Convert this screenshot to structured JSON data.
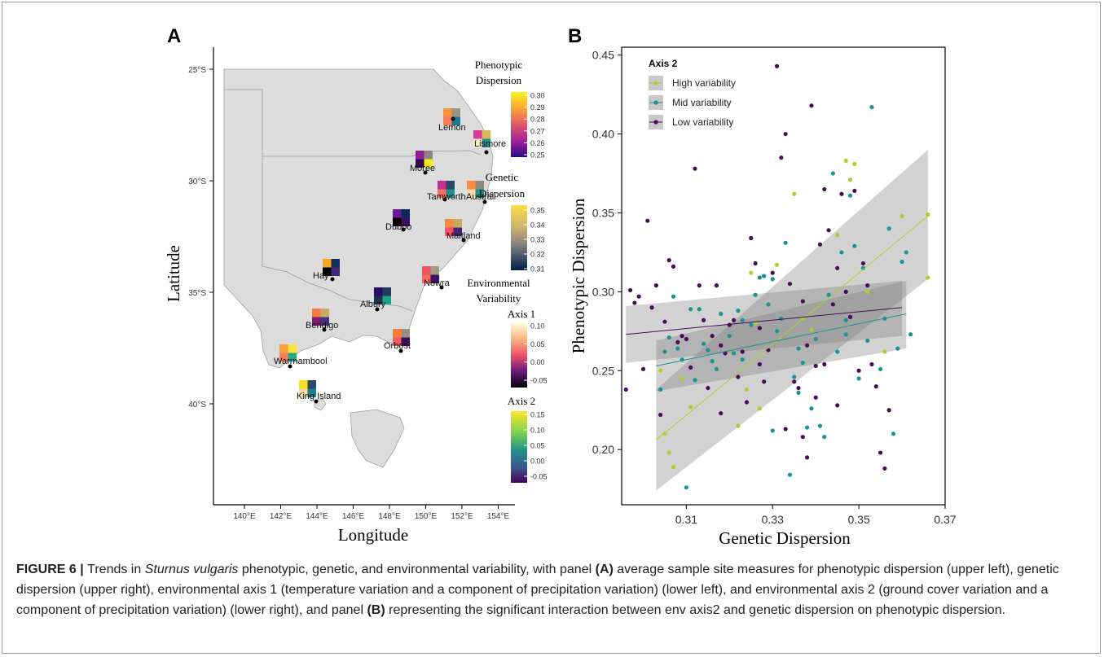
{
  "panel_a": {
    "label": "A",
    "xlabel": "Longitude",
    "ylabel": "Latitude",
    "x_ticks": [
      "140°E",
      "142°E",
      "144°E",
      "146°E",
      "148°E",
      "150°E",
      "152°E",
      "154°E"
    ],
    "y_ticks": [
      "25°S",
      "30°S",
      "35°S",
      "40°S"
    ],
    "legend": {
      "pheno_title_1": "Phenotypic",
      "pheno_title_2": "Dispersion",
      "pheno_ticks": [
        "0.30",
        "0.29",
        "0.28",
        "0.27",
        "0.26",
        "0.25"
      ],
      "gen_title_1": "Genetic",
      "gen_title_2": "Dispersion",
      "gen_ticks": [
        "0.35",
        "0.34",
        "0.33",
        "0.32",
        "0.31"
      ],
      "env_title_1": "Environmental",
      "env_title_2": "Variability",
      "axis1_title": "Axis 1",
      "axis1_ticks": [
        "0.10",
        "0.05",
        "0.00",
        "-0.05"
      ],
      "axis2_title": "Axis 2",
      "axis2_ticks": [
        "0.15",
        "0.10",
        "0.05",
        "0.00",
        "-0.05"
      ]
    },
    "sites": [
      {
        "name": "Lemon",
        "colors": [
          "#F7923B",
          "#9A9187",
          "#FA7B5E",
          "#1A7A8C"
        ]
      },
      {
        "name": "Lismore",
        "colors": [
          "#D83C93",
          "#DAB659",
          "#FFF0C2",
          "#21908C"
        ]
      },
      {
        "name": "Moree",
        "colors": [
          "#8E2096",
          "#8C8680",
          "#32084F",
          "#F4E91F"
        ]
      },
      {
        "name": "Tamworth",
        "colors": [
          "#C42F91",
          "#2C4668",
          "#FA6E62",
          "#20918C"
        ]
      },
      {
        "name": "Austral",
        "colors": [
          "#FC8C43",
          "#8F8982",
          "#FBD8A8",
          "#23948B"
        ]
      },
      {
        "name": "Dubbo",
        "colors": [
          "#6A1A9A",
          "#0C2A5B",
          "#050302",
          "#3E1063"
        ]
      },
      {
        "name": "Maitland",
        "colors": [
          "#F58A3E",
          "#C9AC63",
          "#FA4F6A",
          "#452873"
        ]
      },
      {
        "name": "Hay",
        "colors": [
          "#F5A623",
          "#122F60",
          "#000000",
          "#482677"
        ]
      },
      {
        "name": "Nowra",
        "colors": [
          "#F0535F",
          "#A39A82",
          "#FB6562",
          "#3D1065"
        ]
      },
      {
        "name": "Albury",
        "colors": [
          "#2A0A6B",
          "#1F3C5F",
          "#1F2E4F",
          "#1FA188"
        ]
      },
      {
        "name": "Bendigo",
        "colors": [
          "#F4793D",
          "#C2AA6A",
          "#7E1C6E",
          "#463480"
        ]
      },
      {
        "name": "Orbost",
        "colors": [
          "#F57D3A",
          "#9A8F80",
          "#F05A62",
          "#3A0C5D"
        ]
      },
      {
        "name": "Warrnambool",
        "colors": [
          "#F99F3B",
          "#F8E23B",
          "#FB7E5A",
          "#22A884"
        ]
      },
      {
        "name": "King Island",
        "colors": [
          "#F2E41E",
          "#2E4A6A",
          "#FBD9A2",
          "#1E7F8E"
        ]
      }
    ]
  },
  "panel_b": {
    "label": "B",
    "legend_title": "Axis 2",
    "colors": {
      "high": "#A6D12E",
      "mid": "#1B9295",
      "low": "#4B0A5C"
    }
  },
  "chart_data": {
    "type": "scatter",
    "xlabel": "Genetic Dispersion",
    "ylabel": "Phenotypic Dispersion",
    "xlim": [
      0.295,
      0.37
    ],
    "ylim": [
      0.165,
      0.455
    ],
    "x_ticks": [
      0.31,
      0.33,
      0.35,
      0.37
    ],
    "y_ticks": [
      0.2,
      0.25,
      0.3,
      0.35,
      0.4,
      0.45
    ],
    "series": [
      {
        "name": "High variability",
        "fit": {
          "x": [
            0.303,
            0.366
          ],
          "y": [
            0.206,
            0.348
          ],
          "band_lo": [
            0.174,
            0.308
          ],
          "band_hi": [
            0.238,
            0.39
          ]
        },
        "points": [
          [
            0.304,
            0.25
          ],
          [
            0.305,
            0.21
          ],
          [
            0.306,
            0.198
          ],
          [
            0.307,
            0.189
          ],
          [
            0.309,
            0.245
          ],
          [
            0.311,
            0.227
          ],
          [
            0.322,
            0.215
          ],
          [
            0.324,
            0.238
          ],
          [
            0.325,
            0.312
          ],
          [
            0.326,
            0.28
          ],
          [
            0.327,
            0.226
          ],
          [
            0.331,
            0.317
          ],
          [
            0.335,
            0.362
          ],
          [
            0.337,
            0.283
          ],
          [
            0.345,
            0.336
          ],
          [
            0.347,
            0.383
          ],
          [
            0.348,
            0.371
          ],
          [
            0.349,
            0.381
          ],
          [
            0.352,
            0.3
          ],
          [
            0.356,
            0.262
          ],
          [
            0.36,
            0.348
          ],
          [
            0.366,
            0.349
          ],
          [
            0.366,
            0.309
          ],
          [
            0.339,
            0.276
          ]
        ]
      },
      {
        "name": "Mid variability",
        "fit": {
          "x": [
            0.303,
            0.361
          ],
          "y": [
            0.253,
            0.286
          ],
          "band_lo": [
            0.237,
            0.264
          ],
          "band_hi": [
            0.269,
            0.307
          ]
        },
        "points": [
          [
            0.304,
            0.238
          ],
          [
            0.305,
            0.262
          ],
          [
            0.306,
            0.271
          ],
          [
            0.307,
            0.297
          ],
          [
            0.308,
            0.264
          ],
          [
            0.309,
            0.257
          ],
          [
            0.31,
            0.176
          ],
          [
            0.311,
            0.289
          ],
          [
            0.312,
            0.244
          ],
          [
            0.313,
            0.289
          ],
          [
            0.314,
            0.267
          ],
          [
            0.315,
            0.263
          ],
          [
            0.316,
            0.256
          ],
          [
            0.317,
            0.251
          ],
          [
            0.318,
            0.286
          ],
          [
            0.32,
            0.272
          ],
          [
            0.321,
            0.261
          ],
          [
            0.322,
            0.288
          ],
          [
            0.323,
            0.257
          ],
          [
            0.325,
            0.279
          ],
          [
            0.326,
            0.298
          ],
          [
            0.327,
            0.309
          ],
          [
            0.328,
            0.31
          ],
          [
            0.329,
            0.292
          ],
          [
            0.33,
            0.212
          ],
          [
            0.331,
            0.275
          ],
          [
            0.332,
            0.283
          ],
          [
            0.333,
            0.331
          ],
          [
            0.334,
            0.184
          ],
          [
            0.335,
            0.246
          ],
          [
            0.336,
            0.264
          ],
          [
            0.337,
            0.255
          ],
          [
            0.338,
            0.214
          ],
          [
            0.339,
            0.226
          ],
          [
            0.34,
            0.27
          ],
          [
            0.341,
            0.215
          ],
          [
            0.342,
            0.208
          ],
          [
            0.343,
            0.298
          ],
          [
            0.344,
            0.375
          ],
          [
            0.345,
            0.262
          ],
          [
            0.346,
            0.325
          ],
          [
            0.347,
            0.273
          ],
          [
            0.348,
            0.361
          ],
          [
            0.349,
            0.329
          ],
          [
            0.35,
            0.245
          ],
          [
            0.351,
            0.315
          ],
          [
            0.352,
            0.269
          ],
          [
            0.353,
            0.417
          ],
          [
            0.355,
            0.251
          ],
          [
            0.356,
            0.283
          ],
          [
            0.357,
            0.34
          ],
          [
            0.358,
            0.21
          ],
          [
            0.359,
            0.264
          ],
          [
            0.36,
            0.319
          ],
          [
            0.361,
            0.325
          ],
          [
            0.362,
            0.273
          ],
          [
            0.347,
            0.282
          ],
          [
            0.33,
            0.308
          ],
          [
            0.323,
            0.282
          ],
          [
            0.336,
            0.236
          ]
        ]
      },
      {
        "name": "Low variability",
        "fit": {
          "x": [
            0.296,
            0.36
          ],
          "y": [
            0.273,
            0.29
          ],
          "band_lo": [
            0.255,
            0.272
          ],
          "band_hi": [
            0.291,
            0.307
          ]
        },
        "points": [
          [
            0.296,
            0.238
          ],
          [
            0.297,
            0.301
          ],
          [
            0.298,
            0.293
          ],
          [
            0.299,
            0.297
          ],
          [
            0.3,
            0.251
          ],
          [
            0.301,
            0.345
          ],
          [
            0.302,
            0.29
          ],
          [
            0.303,
            0.304
          ],
          [
            0.304,
            0.222
          ],
          [
            0.305,
            0.281
          ],
          [
            0.306,
            0.32
          ],
          [
            0.307,
            0.316
          ],
          [
            0.308,
            0.268
          ],
          [
            0.309,
            0.272
          ],
          [
            0.31,
            0.27
          ],
          [
            0.311,
            0.252
          ],
          [
            0.312,
            0.378
          ],
          [
            0.313,
            0.304
          ],
          [
            0.314,
            0.282
          ],
          [
            0.315,
            0.239
          ],
          [
            0.316,
            0.272
          ],
          [
            0.317,
            0.304
          ],
          [
            0.318,
            0.223
          ],
          [
            0.319,
            0.261
          ],
          [
            0.32,
            0.279
          ],
          [
            0.321,
            0.282
          ],
          [
            0.322,
            0.246
          ],
          [
            0.323,
            0.262
          ],
          [
            0.324,
            0.23
          ],
          [
            0.325,
            0.334
          ],
          [
            0.326,
            0.318
          ],
          [
            0.327,
            0.277
          ],
          [
            0.328,
            0.243
          ],
          [
            0.329,
            0.263
          ],
          [
            0.33,
            0.312
          ],
          [
            0.331,
            0.443
          ],
          [
            0.332,
            0.385
          ],
          [
            0.333,
            0.4
          ],
          [
            0.334,
            0.305
          ],
          [
            0.335,
            0.243
          ],
          [
            0.336,
            0.239
          ],
          [
            0.337,
            0.294
          ],
          [
            0.338,
            0.266
          ],
          [
            0.339,
            0.418
          ],
          [
            0.34,
            0.253
          ],
          [
            0.341,
            0.33
          ],
          [
            0.342,
            0.365
          ],
          [
            0.343,
            0.339
          ],
          [
            0.344,
            0.292
          ],
          [
            0.345,
            0.315
          ],
          [
            0.346,
            0.362
          ],
          [
            0.347,
            0.3
          ],
          [
            0.348,
            0.284
          ],
          [
            0.349,
            0.364
          ],
          [
            0.35,
            0.25
          ],
          [
            0.351,
            0.318
          ],
          [
            0.352,
            0.304
          ],
          [
            0.353,
            0.254
          ],
          [
            0.354,
            0.24
          ],
          [
            0.355,
            0.198
          ],
          [
            0.356,
            0.188
          ],
          [
            0.357,
            0.225
          ],
          [
            0.34,
            0.233
          ],
          [
            0.338,
            0.195
          ],
          [
            0.342,
            0.254
          ],
          [
            0.333,
            0.213
          ],
          [
            0.337,
            0.208
          ],
          [
            0.327,
            0.254
          ],
          [
            0.318,
            0.266
          ],
          [
            0.345,
            0.228
          ]
        ]
      }
    ]
  },
  "caption": {
    "label": "FIGURE 6 | ",
    "t1": "Trends in ",
    "species": "Sturnus vulgaris",
    "t2": " phenotypic, genetic, and environmental variability, with panel ",
    "a": "(A)",
    "t3": " average sample site measures for phenotypic dispersion (upper left), genetic dispersion (upper right), environmental axis 1 (temperature variation and a component of precipitation variation) (lower left), and environmental axis 2 (ground cover variation and a component of precipitation variation) (lower right), and panel ",
    "b": "(B)",
    "t4": " representing the significant interaction between env axis2 and genetic dispersion on phenotypic dispersion."
  }
}
